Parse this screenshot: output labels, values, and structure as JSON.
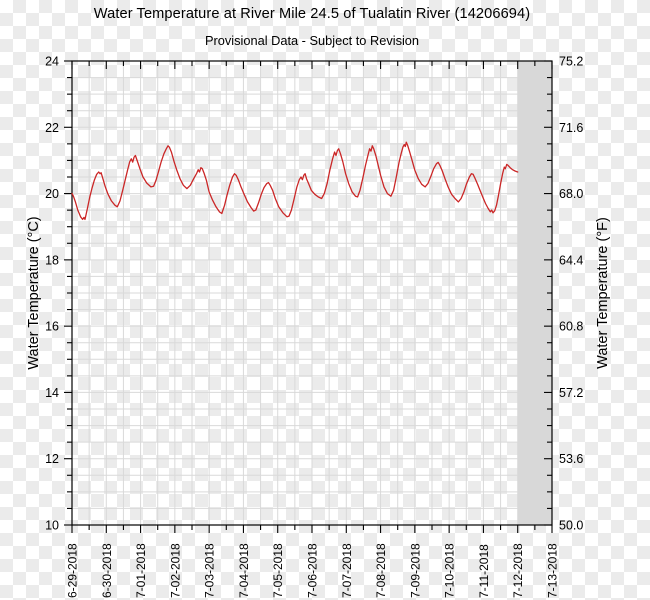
{
  "chart_data": {
    "type": "line",
    "title": "Water Temperature at River Mile 24.5 of Tualatin River (14206694)",
    "subtitle": "Provisional Data - Subject to Revision",
    "x_axis": {
      "tick_labels": [
        "6-29-2018",
        "6-30-2018",
        "7-01-2018",
        "7-02-2018",
        "7-03-2018",
        "7-04-2018",
        "7-05-2018",
        "7-06-2018",
        "7-07-2018",
        "7-08-2018",
        "7-09-2018",
        "7-10-2018",
        "7-11-2018",
        "7-12-2018",
        "7-13-2018"
      ],
      "major_tick_interval": "1 day",
      "minor_tick_interval": "12 hours",
      "range_days": [
        0,
        14
      ]
    },
    "y_left": {
      "label": "Water Temperature (°C)",
      "min": 10,
      "max": 24,
      "tick_labels": [
        "24",
        "22",
        "20",
        "18",
        "16",
        "14",
        "12",
        "10"
      ],
      "tick_values": [
        24,
        22,
        20,
        18,
        16,
        14,
        12,
        10
      ],
      "minor_step": 0.5
    },
    "y_right": {
      "label": "Water Temperature (°F)",
      "min": 50.0,
      "max": 75.2,
      "tick_labels": [
        "75.2",
        "71.6",
        "68.0",
        "64.4",
        "60.8",
        "57.2",
        "53.6",
        "50.0"
      ],
      "tick_values_c": [
        24,
        22,
        20,
        18,
        16,
        14,
        12,
        10
      ],
      "minor_step_f": 0.9
    },
    "grid": {
      "show": true,
      "color": "#d9d9d9",
      "x_step_days": 0.5,
      "y_step_c": 0.5
    },
    "shaded_region": {
      "start_day": 13,
      "end_day": 14,
      "color": "#d8d8d8"
    },
    "series": [
      {
        "name": "water-temperature-c",
        "color": "#cb2727",
        "points": [
          [
            0,
            20.0
          ],
          [
            0.04,
            19.92
          ],
          [
            0.1,
            19.75
          ],
          [
            0.17,
            19.5
          ],
          [
            0.25,
            19.3
          ],
          [
            0.31,
            19.22
          ],
          [
            0.35,
            19.28
          ],
          [
            0.38,
            19.22
          ],
          [
            0.45,
            19.55
          ],
          [
            0.52,
            19.9
          ],
          [
            0.58,
            20.15
          ],
          [
            0.65,
            20.4
          ],
          [
            0.72,
            20.58
          ],
          [
            0.78,
            20.65
          ],
          [
            0.82,
            20.6
          ],
          [
            0.85,
            20.63
          ],
          [
            0.9,
            20.45
          ],
          [
            0.97,
            20.2
          ],
          [
            1.05,
            19.98
          ],
          [
            1.15,
            19.78
          ],
          [
            1.25,
            19.65
          ],
          [
            1.32,
            19.6
          ],
          [
            1.4,
            19.78
          ],
          [
            1.48,
            20.1
          ],
          [
            1.55,
            20.4
          ],
          [
            1.62,
            20.7
          ],
          [
            1.68,
            20.95
          ],
          [
            1.73,
            21.05
          ],
          [
            1.77,
            20.95
          ],
          [
            1.81,
            21.1
          ],
          [
            1.85,
            21.15
          ],
          [
            1.9,
            21.0
          ],
          [
            1.98,
            20.75
          ],
          [
            2.07,
            20.5
          ],
          [
            2.18,
            20.32
          ],
          [
            2.3,
            20.2
          ],
          [
            2.38,
            20.22
          ],
          [
            2.45,
            20.4
          ],
          [
            2.52,
            20.65
          ],
          [
            2.6,
            20.95
          ],
          [
            2.68,
            21.2
          ],
          [
            2.75,
            21.35
          ],
          [
            2.8,
            21.44
          ],
          [
            2.84,
            21.4
          ],
          [
            2.9,
            21.25
          ],
          [
            2.98,
            20.95
          ],
          [
            3.06,
            20.7
          ],
          [
            3.15,
            20.45
          ],
          [
            3.25,
            20.25
          ],
          [
            3.35,
            20.15
          ],
          [
            3.45,
            20.25
          ],
          [
            3.55,
            20.45
          ],
          [
            3.63,
            20.6
          ],
          [
            3.68,
            20.72
          ],
          [
            3.72,
            20.65
          ],
          [
            3.76,
            20.78
          ],
          [
            3.8,
            20.75
          ],
          [
            3.85,
            20.62
          ],
          [
            3.92,
            20.4
          ],
          [
            4.0,
            20.05
          ],
          [
            4.1,
            19.8
          ],
          [
            4.2,
            19.6
          ],
          [
            4.3,
            19.45
          ],
          [
            4.37,
            19.4
          ],
          [
            4.45,
            19.65
          ],
          [
            4.52,
            19.95
          ],
          [
            4.6,
            20.25
          ],
          [
            4.68,
            20.5
          ],
          [
            4.74,
            20.6
          ],
          [
            4.79,
            20.55
          ],
          [
            4.85,
            20.42
          ],
          [
            4.93,
            20.2
          ],
          [
            5.02,
            19.98
          ],
          [
            5.12,
            19.75
          ],
          [
            5.22,
            19.58
          ],
          [
            5.3,
            19.47
          ],
          [
            5.36,
            19.5
          ],
          [
            5.44,
            19.72
          ],
          [
            5.52,
            19.98
          ],
          [
            5.6,
            20.18
          ],
          [
            5.68,
            20.3
          ],
          [
            5.73,
            20.33
          ],
          [
            5.78,
            20.25
          ],
          [
            5.85,
            20.1
          ],
          [
            5.93,
            19.85
          ],
          [
            6.03,
            19.6
          ],
          [
            6.15,
            19.42
          ],
          [
            6.27,
            19.3
          ],
          [
            6.33,
            19.32
          ],
          [
            6.4,
            19.5
          ],
          [
            6.48,
            19.85
          ],
          [
            6.56,
            20.2
          ],
          [
            6.63,
            20.42
          ],
          [
            6.68,
            20.5
          ],
          [
            6.72,
            20.42
          ],
          [
            6.76,
            20.55
          ],
          [
            6.8,
            20.6
          ],
          [
            6.84,
            20.45
          ],
          [
            6.9,
            20.3
          ],
          [
            6.98,
            20.1
          ],
          [
            7.08,
            19.98
          ],
          [
            7.18,
            19.9
          ],
          [
            7.28,
            19.85
          ],
          [
            7.36,
            20.0
          ],
          [
            7.44,
            20.3
          ],
          [
            7.52,
            20.7
          ],
          [
            7.6,
            21.05
          ],
          [
            7.66,
            21.25
          ],
          [
            7.7,
            21.15
          ],
          [
            7.74,
            21.3
          ],
          [
            7.78,
            21.35
          ],
          [
            7.83,
            21.2
          ],
          [
            7.9,
            20.95
          ],
          [
            7.98,
            20.6
          ],
          [
            8.07,
            20.3
          ],
          [
            8.17,
            20.05
          ],
          [
            8.27,
            19.92
          ],
          [
            8.33,
            19.9
          ],
          [
            8.4,
            20.1
          ],
          [
            8.48,
            20.45
          ],
          [
            8.56,
            20.85
          ],
          [
            8.63,
            21.15
          ],
          [
            8.68,
            21.35
          ],
          [
            8.72,
            21.28
          ],
          [
            8.76,
            21.44
          ],
          [
            8.8,
            21.35
          ],
          [
            8.86,
            21.15
          ],
          [
            8.93,
            20.85
          ],
          [
            9.0,
            20.55
          ],
          [
            9.1,
            20.2
          ],
          [
            9.2,
            20.0
          ],
          [
            9.3,
            19.92
          ],
          [
            9.38,
            20.1
          ],
          [
            9.46,
            20.5
          ],
          [
            9.54,
            20.95
          ],
          [
            9.6,
            21.2
          ],
          [
            9.65,
            21.4
          ],
          [
            9.69,
            21.48
          ],
          [
            9.72,
            21.42
          ],
          [
            9.75,
            21.55
          ],
          [
            9.79,
            21.45
          ],
          [
            9.85,
            21.25
          ],
          [
            9.92,
            21.0
          ],
          [
            10.0,
            20.7
          ],
          [
            10.1,
            20.45
          ],
          [
            10.2,
            20.28
          ],
          [
            10.3,
            20.2
          ],
          [
            10.38,
            20.3
          ],
          [
            10.46,
            20.5
          ],
          [
            10.55,
            20.75
          ],
          [
            10.63,
            20.9
          ],
          [
            10.68,
            20.94
          ],
          [
            10.73,
            20.85
          ],
          [
            10.8,
            20.68
          ],
          [
            10.88,
            20.45
          ],
          [
            10.97,
            20.2
          ],
          [
            11.07,
            19.98
          ],
          [
            11.17,
            19.85
          ],
          [
            11.27,
            19.75
          ],
          [
            11.35,
            19.85
          ],
          [
            11.43,
            20.05
          ],
          [
            11.51,
            20.3
          ],
          [
            11.59,
            20.5
          ],
          [
            11.65,
            20.6
          ],
          [
            11.7,
            20.58
          ],
          [
            11.76,
            20.45
          ],
          [
            11.83,
            20.28
          ],
          [
            11.9,
            20.1
          ],
          [
            11.98,
            19.9
          ],
          [
            12.06,
            19.7
          ],
          [
            12.14,
            19.55
          ],
          [
            12.2,
            19.45
          ],
          [
            12.24,
            19.5
          ],
          [
            12.28,
            19.42
          ],
          [
            12.33,
            19.48
          ],
          [
            12.38,
            19.65
          ],
          [
            12.44,
            19.95
          ],
          [
            12.5,
            20.3
          ],
          [
            12.56,
            20.6
          ],
          [
            12.61,
            20.8
          ],
          [
            12.64,
            20.75
          ],
          [
            12.68,
            20.88
          ],
          [
            12.72,
            20.85
          ],
          [
            12.78,
            20.78
          ],
          [
            12.85,
            20.72
          ],
          [
            12.92,
            20.68
          ],
          [
            13.0,
            20.65
          ]
        ]
      }
    ]
  }
}
